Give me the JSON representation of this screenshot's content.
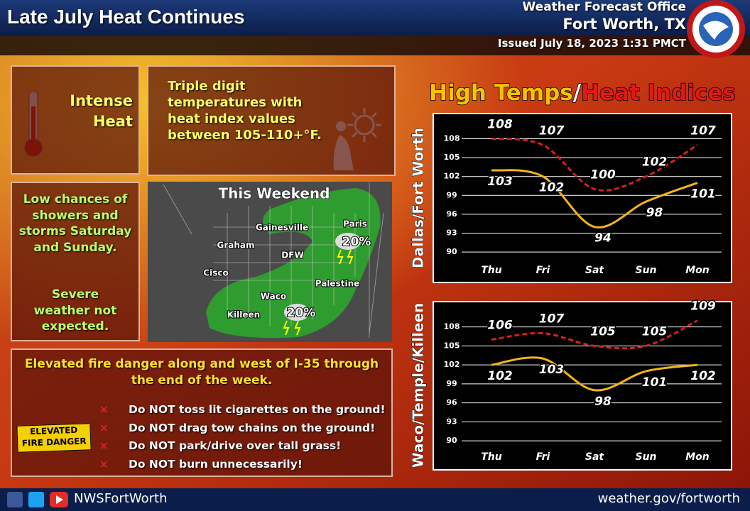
{
  "header": {
    "title": "Late July Heat Continues",
    "office": "Weather Forecast Office",
    "location": "Fort Worth, TX",
    "issued": "Issued July 18, 2023 1:31 PMCT"
  },
  "heat": {
    "label": "Intense Heat",
    "text": "Triple digit temperatures with heat index values between 105-110+°F."
  },
  "storms": {
    "chances": "Low chances of showers and storms Saturday and Sunday.",
    "severe": "Severe weather not expected."
  },
  "map": {
    "title": "This Weekend",
    "cities": [
      "Gainesville",
      "Paris",
      "Graham",
      "DFW",
      "Cisco",
      "Palestine",
      "Waco",
      "Killeen"
    ],
    "chances": [
      "20%",
      "20%"
    ]
  },
  "fire": {
    "headline": "Elevated fire danger along and west of I-35 through the end of the week.",
    "badge": [
      "ELEVATED",
      "FIRE DANGER"
    ],
    "items": [
      "Do NOT toss lit cigarettes on the ground!",
      "Do NOT drag tow chains on the ground!",
      "Do NOT park/drive over tall grass!",
      "Do NOT burn unnecessarily!"
    ]
  },
  "panel_title": {
    "high": "High Temps",
    "separator": "/",
    "heat": "Heat Indices"
  },
  "footer": {
    "handle": "NWSFortWorth",
    "url": "weather.gov/fortworth"
  },
  "chart_data": [
    {
      "type": "line",
      "ylabel": "Dallas/Fort Worth",
      "categories": [
        "Thu",
        "Fri",
        "Sat",
        "Sun",
        "Mon"
      ],
      "series": [
        {
          "color": "#f2b51c",
          "dashed": false,
          "values": [
            103,
            102,
            94,
            98,
            101
          ]
        },
        {
          "color": "#d42020",
          "dashed": true,
          "values": [
            108,
            107,
            100,
            102,
            107
          ]
        }
      ],
      "ylim": [
        89,
        112
      ],
      "yticks": [
        90,
        93,
        96,
        99,
        102,
        105,
        108
      ],
      "grid": true
    },
    {
      "type": "line",
      "ylabel": "Waco/Temple/Killeen",
      "categories": [
        "Thu",
        "Fri",
        "Sat",
        "Sun",
        "Mon"
      ],
      "series": [
        {
          "color": "#f2b51c",
          "dashed": false,
          "values": [
            102,
            103,
            98,
            101,
            102
          ]
        },
        {
          "color": "#d42020",
          "dashed": true,
          "values": [
            106,
            107,
            105,
            105,
            109
          ]
        }
      ],
      "ylim": [
        89,
        112
      ],
      "yticks": [
        90,
        93,
        96,
        99,
        102,
        105,
        108
      ],
      "grid": true
    }
  ]
}
